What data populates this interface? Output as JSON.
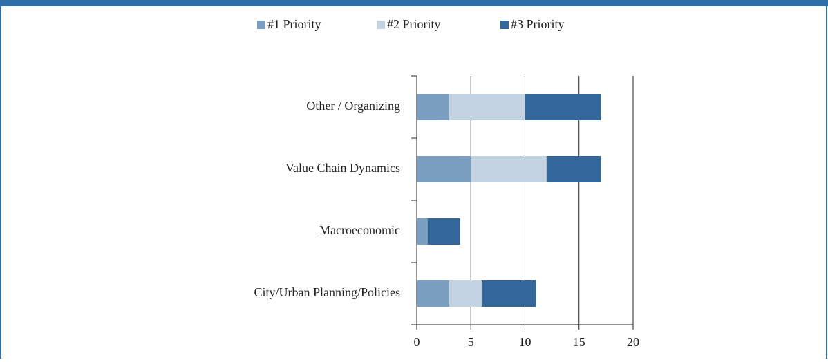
{
  "chart_data": {
    "type": "stacked-bar-horizontal",
    "categories": [
      "Other / Organizing",
      "Value Chain Dynamics",
      "Macroeconomic",
      "City/Urban Planning/Policies"
    ],
    "series": [
      {
        "name": "#1 Priority",
        "color": "#7b9fc1",
        "values": [
          3,
          5,
          1,
          3
        ]
      },
      {
        "name": "#2 Priority",
        "color": "#c3d3e1",
        "values": [
          7,
          7,
          0,
          3
        ]
      },
      {
        "name": "#3 Priority",
        "color": "#336699",
        "values": [
          7,
          5,
          3,
          5
        ]
      }
    ],
    "xlim": [
      0,
      20
    ],
    "xticks": [
      0,
      5,
      10,
      15,
      20
    ],
    "grid": true,
    "legend": "top"
  }
}
